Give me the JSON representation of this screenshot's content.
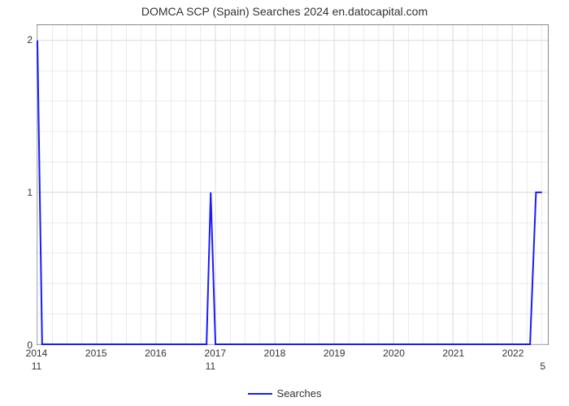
{
  "chart": {
    "type": "line",
    "title": "DOMCA SCP (Spain) Searches 2024 en.datocapital.com",
    "title_fontsize": 14,
    "background_color": "#ffffff",
    "grid_color": "#d9d9d9",
    "axis_color": "#888888",
    "series_color": "#1a1aff",
    "line_width": 2,
    "x": {
      "ticks": [
        2014,
        2015,
        2016,
        2017,
        2018,
        2019,
        2020,
        2021,
        2022
      ],
      "min": 2014,
      "max": 2022.6,
      "minor_grid_per_major": 4
    },
    "y": {
      "ticks": [
        0,
        1,
        2
      ],
      "min": 0,
      "max": 2.1,
      "minor_grid_per_major": 5
    },
    "points": [
      {
        "x": 2014.0,
        "y": 2.0
      },
      {
        "x": 2014.08,
        "y": 0.0
      },
      {
        "x": 2016.85,
        "y": 0.0
      },
      {
        "x": 2016.92,
        "y": 1.0
      },
      {
        "x": 2017.0,
        "y": 0.0
      },
      {
        "x": 2022.3,
        "y": 0.0
      },
      {
        "x": 2022.4,
        "y": 1.0
      },
      {
        "x": 2022.5,
        "y": 1.0
      }
    ],
    "data_labels": [
      {
        "x": 2014.0,
        "value": "11"
      },
      {
        "x": 2016.92,
        "value": "11"
      },
      {
        "x": 2022.5,
        "value": "5"
      }
    ],
    "legend": {
      "label": "Searches"
    }
  }
}
